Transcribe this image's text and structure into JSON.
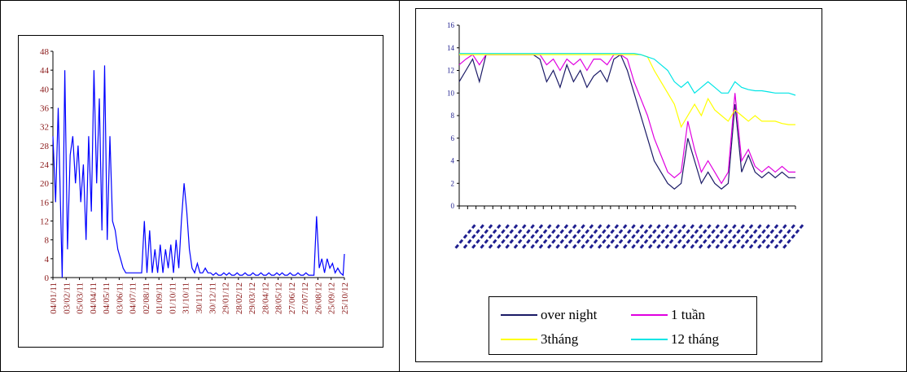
{
  "chart_data": [
    {
      "type": "line",
      "title": "",
      "xlabel": "",
      "ylabel": "",
      "ylim": [
        0,
        48
      ],
      "yticks": [
        0,
        4,
        8,
        12,
        16,
        20,
        24,
        28,
        32,
        36,
        40,
        44,
        48
      ],
      "xticks": [
        "04/01/11",
        "03/02/11",
        "05/03/11",
        "04/04/11",
        "04/05/11",
        "03/06/11",
        "04/07/11",
        "02/08/11",
        "01/09/11",
        "01/10/11",
        "31/10/11",
        "30/11/11",
        "30/12/11",
        "29/01/12",
        "28/02/12",
        "29/03/12",
        "28/04/12",
        "28/05/12",
        "27/06/12",
        "27/07/12",
        "26/08/12",
        "25/09/12",
        "25/10/12"
      ],
      "series": [
        {
          "color": "#0000ff",
          "x": [
            0,
            0.2,
            0.4,
            0.7,
            0.9,
            1.1,
            1.3,
            1.5,
            1.7,
            1.9,
            2.1,
            2.3,
            2.5,
            2.7,
            2.9,
            3.1,
            3.3,
            3.5,
            3.7,
            3.9,
            4.1,
            4.3,
            4.5,
            4.7,
            4.9,
            5.1,
            5.3,
            5.5,
            5.7,
            5.9,
            6.1,
            6.3,
            6.5,
            6.7,
            6.9,
            7.1,
            7.3,
            7.5,
            7.7,
            7.9,
            8.1,
            8.3,
            8.5,
            8.7,
            8.9,
            9.1,
            9.3,
            9.5,
            9.7,
            9.9,
            10.1,
            10.3,
            10.5,
            10.7,
            10.9,
            11.1,
            11.3,
            11.5,
            11.7,
            11.9,
            12.1,
            12.3,
            12.5,
            12.7,
            12.9,
            13.1,
            13.3,
            13.5,
            13.7,
            13.9,
            14.1,
            14.3,
            14.5,
            14.7,
            14.9,
            15.1,
            15.3,
            15.5,
            15.7,
            15.9,
            16.1,
            16.3,
            16.5,
            16.7,
            16.9,
            17.1,
            17.3,
            17.5,
            17.7,
            17.9,
            18.1,
            18.3,
            18.5,
            18.7,
            18.9,
            19.1,
            19.3,
            19.5,
            19.7,
            19.9,
            20.1,
            20.3,
            20.5,
            20.7,
            20.9,
            21.1,
            21.3,
            21.5,
            21.7,
            21.9,
            22.0
          ],
          "values": [
            30,
            16,
            36,
            0,
            44,
            6,
            26,
            30,
            20,
            28,
            16,
            24,
            8,
            30,
            14,
            44,
            20,
            38,
            10,
            45,
            8,
            30,
            12,
            10,
            6,
            4,
            2,
            1,
            1,
            1,
            1,
            1,
            1,
            1,
            12,
            1,
            10,
            1,
            6,
            1,
            7,
            1,
            6,
            2,
            7,
            1,
            8,
            2,
            12,
            20,
            14,
            6,
            2,
            1,
            3,
            1,
            1,
            2,
            1,
            1,
            0.5,
            1,
            0.5,
            0.5,
            1,
            0.5,
            1,
            0.5,
            0.5,
            1,
            0.5,
            0.5,
            1,
            0.5,
            0.5,
            1,
            0.5,
            0.5,
            1,
            0.5,
            0.5,
            1,
            0.5,
            0.5,
            1,
            0.5,
            1,
            0.5,
            0.5,
            1,
            0.5,
            0.5,
            1,
            0.5,
            0.5,
            1,
            0.5,
            0.5,
            0.5,
            13,
            2,
            4,
            1,
            4,
            2,
            3,
            1,
            2,
            1,
            0.5,
            5
          ]
        }
      ]
    },
    {
      "type": "line",
      "title": "",
      "xlabel": "",
      "ylabel": "",
      "ylim": [
        0,
        16
      ],
      "yticks": [
        0,
        2,
        4,
        6,
        8,
        10,
        12,
        14,
        16
      ],
      "x_tick_count": 40,
      "legend_placement": "bottom",
      "series": [
        {
          "name": "over night",
          "color": "#1a1a66",
          "x": [
            0,
            3,
            6,
            9,
            12,
            15,
            18,
            21,
            24,
            27,
            30,
            33,
            36,
            39,
            42,
            45,
            48,
            51,
            54,
            57,
            60,
            63,
            66,
            69,
            72,
            75,
            78,
            81,
            84,
            87,
            90,
            93,
            96,
            99,
            102,
            105,
            108,
            111,
            114,
            117,
            120,
            123,
            126,
            129,
            132,
            135,
            138,
            141,
            144,
            147,
            150
          ],
          "values": [
            11,
            12,
            13,
            11,
            13.4,
            13.4,
            13.4,
            13.4,
            13.4,
            13.4,
            13.4,
            13.4,
            13,
            11,
            12,
            10.5,
            12.5,
            11,
            12,
            10.5,
            11.5,
            12,
            11,
            13,
            13.4,
            12,
            10,
            8,
            6,
            4,
            3,
            2,
            1.5,
            2,
            6,
            4,
            2,
            3,
            2,
            1.5,
            2,
            9,
            3,
            4.5,
            3,
            2.5,
            3,
            2.5,
            3,
            2.5,
            2.5
          ]
        },
        {
          "name": "1 tuần",
          "color": "#e000e0",
          "x": [
            0,
            3,
            6,
            9,
            12,
            15,
            18,
            21,
            24,
            27,
            30,
            33,
            36,
            39,
            42,
            45,
            48,
            51,
            54,
            57,
            60,
            63,
            66,
            69,
            72,
            75,
            78,
            81,
            84,
            87,
            90,
            93,
            96,
            99,
            102,
            105,
            108,
            111,
            114,
            117,
            120,
            123,
            126,
            129,
            132,
            135,
            138,
            141,
            144,
            147,
            150
          ],
          "values": [
            12.5,
            13,
            13.4,
            12.5,
            13.4,
            13.4,
            13.4,
            13.4,
            13.4,
            13.4,
            13.4,
            13.4,
            13.4,
            12.5,
            13,
            12,
            13,
            12.5,
            13,
            12,
            13,
            13,
            12.5,
            13.4,
            13.4,
            13,
            11,
            9.5,
            8,
            6,
            4.5,
            3,
            2.5,
            3,
            7.5,
            5,
            3,
            4,
            3,
            2,
            3,
            10,
            4,
            5,
            3.5,
            3,
            3.5,
            3,
            3.5,
            3,
            3
          ]
        },
        {
          "name": "3tháng",
          "color": "#ffff00",
          "x": [
            0,
            3,
            6,
            9,
            12,
            15,
            18,
            21,
            24,
            27,
            30,
            33,
            36,
            39,
            42,
            45,
            48,
            51,
            54,
            57,
            60,
            63,
            66,
            69,
            72,
            75,
            78,
            81,
            84,
            87,
            90,
            93,
            96,
            99,
            102,
            105,
            108,
            111,
            114,
            117,
            120,
            123,
            126,
            129,
            132,
            135,
            138,
            141,
            144,
            147,
            150
          ],
          "values": [
            13.4,
            13.4,
            13.4,
            13.4,
            13.4,
            13.4,
            13.4,
            13.4,
            13.4,
            13.4,
            13.4,
            13.4,
            13.4,
            13.4,
            13.4,
            13.4,
            13.4,
            13.4,
            13.4,
            13.4,
            13.4,
            13.4,
            13.4,
            13.4,
            13.4,
            13.4,
            13.4,
            13.4,
            13.2,
            12,
            11,
            10,
            9,
            7,
            8,
            9,
            8,
            9.5,
            8.5,
            8,
            7.5,
            8.5,
            8,
            7.5,
            8,
            7.5,
            7.5,
            7.5,
            7.3,
            7.2,
            7.2
          ]
        },
        {
          "name": "12 tháng",
          "color": "#00e5e5",
          "x": [
            0,
            3,
            6,
            9,
            12,
            15,
            18,
            21,
            24,
            27,
            30,
            33,
            36,
            39,
            42,
            45,
            48,
            51,
            54,
            57,
            60,
            63,
            66,
            69,
            72,
            75,
            78,
            81,
            84,
            87,
            90,
            93,
            96,
            99,
            102,
            105,
            108,
            111,
            114,
            117,
            120,
            123,
            126,
            129,
            132,
            135,
            138,
            141,
            144,
            147,
            150
          ],
          "values": [
            13.5,
            13.5,
            13.5,
            13.5,
            13.5,
            13.5,
            13.5,
            13.5,
            13.5,
            13.5,
            13.5,
            13.5,
            13.5,
            13.5,
            13.5,
            13.5,
            13.5,
            13.5,
            13.5,
            13.5,
            13.5,
            13.5,
            13.5,
            13.5,
            13.5,
            13.5,
            13.5,
            13.4,
            13.2,
            13,
            12.5,
            12,
            11,
            10.5,
            11,
            10,
            10.5,
            11,
            10.5,
            10,
            10,
            11,
            10.5,
            10.3,
            10.2,
            10.2,
            10.1,
            10,
            10,
            10,
            9.8
          ]
        }
      ]
    }
  ]
}
